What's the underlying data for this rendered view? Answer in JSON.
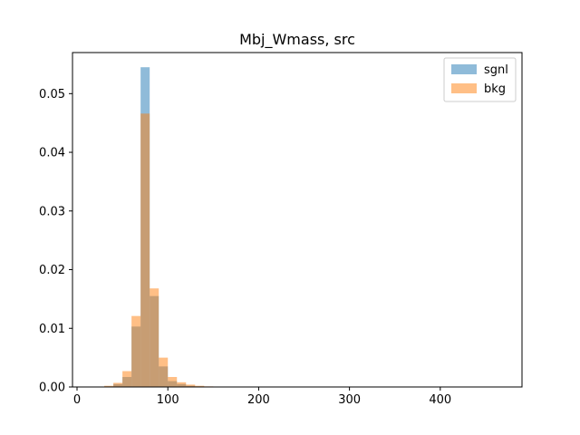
{
  "chart_data": {
    "type": "bar",
    "title": "Mbj_Wmass, src",
    "xlabel": "",
    "ylabel": "",
    "xlim": [
      -5,
      490
    ],
    "ylim": [
      0,
      0.057
    ],
    "xticks": [
      0,
      100,
      200,
      300,
      400
    ],
    "yticks": [
      0.0,
      0.01,
      0.02,
      0.03,
      0.04,
      0.05
    ],
    "ytick_labels": [
      "0.00",
      "0.01",
      "0.02",
      "0.03",
      "0.04",
      "0.05"
    ],
    "grid": false,
    "legend_position": "top-right",
    "bin_edges": [
      20,
      30,
      40,
      50,
      60,
      70,
      80,
      90,
      100,
      110,
      120,
      130,
      140,
      150,
      160,
      170
    ],
    "series": [
      {
        "name": "sgnl",
        "color": "#1f77b4",
        "values": [
          0.0,
          0.0001,
          0.0005,
          0.0017,
          0.0103,
          0.0545,
          0.0155,
          0.0035,
          0.001,
          0.0005,
          0.0002,
          0.0001,
          0.0,
          0.0,
          0.0
        ]
      },
      {
        "name": "bkg",
        "color": "#ff7f0e",
        "values": [
          0.0,
          0.0002,
          0.0007,
          0.0027,
          0.0121,
          0.0466,
          0.0168,
          0.005,
          0.0017,
          0.0008,
          0.0004,
          0.0002,
          0.0001,
          0.0,
          0.0
        ]
      }
    ]
  }
}
